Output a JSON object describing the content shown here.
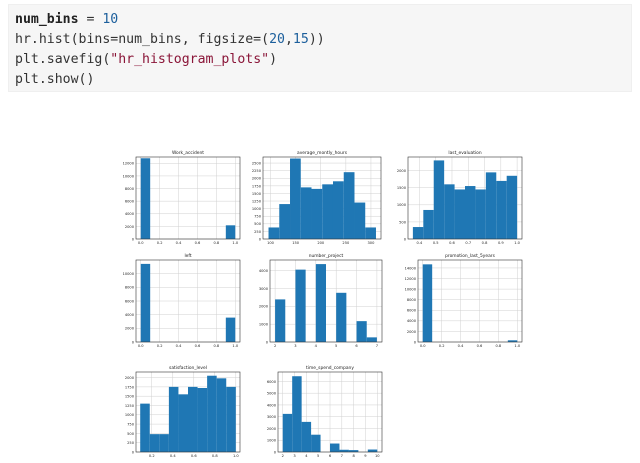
{
  "code": {
    "line1": {
      "var": "num_bins",
      "op": " = ",
      "num": "10"
    },
    "line2": {
      "pre": "hr.hist(bins=num_bins, figsize=(",
      "n1": "20",
      "comma": ",",
      "n2": "15",
      "post": "))"
    },
    "line3": {
      "pre": "plt.savefig(",
      "str": "\"hr_histogram_plots\"",
      "post": ")"
    },
    "line4": {
      "text": "plt.show()"
    }
  },
  "chart_data": [
    {
      "type": "bar",
      "title": "Work_accident",
      "x_ticks": [
        "0.0",
        "0.2",
        "0.4",
        "0.6",
        "0.8",
        "1.0"
      ],
      "xlim": [
        -0.05,
        1.05
      ],
      "y_ticks": [
        "0",
        "2000",
        "4000",
        "6000",
        "8000",
        "10000",
        "12000"
      ],
      "ylim": [
        0,
        13000
      ],
      "bins": [
        {
          "x0": 0.0,
          "x1": 0.1,
          "value": 12800
        },
        {
          "x0": 0.9,
          "x1": 1.0,
          "value": 2170
        }
      ]
    },
    {
      "type": "bar",
      "title": "average_montly_hours",
      "x_ticks": [
        "100",
        "150",
        "200",
        "250",
        "300"
      ],
      "xlim": [
        85,
        320
      ],
      "y_ticks": [
        "0",
        "250",
        "500",
        "750",
        "1000",
        "1250",
        "1500",
        "1750",
        "2000",
        "2250",
        "2500"
      ],
      "ylim": [
        0,
        2700
      ],
      "bins": [
        {
          "x0": 96,
          "x1": 117.4,
          "value": 380
        },
        {
          "x0": 117.4,
          "x1": 138.8,
          "value": 1150
        },
        {
          "x0": 138.8,
          "x1": 160.2,
          "value": 2650
        },
        {
          "x0": 160.2,
          "x1": 181.6,
          "value": 1700
        },
        {
          "x0": 181.6,
          "x1": 203.0,
          "value": 1650
        },
        {
          "x0": 203.0,
          "x1": 224.4,
          "value": 1800
        },
        {
          "x0": 224.4,
          "x1": 245.8,
          "value": 1900
        },
        {
          "x0": 245.8,
          "x1": 267.2,
          "value": 2200
        },
        {
          "x0": 267.2,
          "x1": 288.6,
          "value": 1200
        },
        {
          "x0": 288.6,
          "x1": 310.0,
          "value": 380
        }
      ]
    },
    {
      "type": "bar",
      "title": "last_evaluation",
      "x_ticks": [
        "0.4",
        "0.5",
        "0.6",
        "0.7",
        "0.8",
        "0.9",
        "1.0"
      ],
      "xlim": [
        0.33,
        1.03
      ],
      "y_ticks": [
        "0",
        "500",
        "1000",
        "1500",
        "2000"
      ],
      "ylim": [
        0,
        2400
      ],
      "bins": [
        {
          "x0": 0.36,
          "x1": 0.424,
          "value": 350
        },
        {
          "x0": 0.424,
          "x1": 0.488,
          "value": 850
        },
        {
          "x0": 0.488,
          "x1": 0.552,
          "value": 2300
        },
        {
          "x0": 0.552,
          "x1": 0.616,
          "value": 1600
        },
        {
          "x0": 0.616,
          "x1": 0.68,
          "value": 1450
        },
        {
          "x0": 0.68,
          "x1": 0.744,
          "value": 1550
        },
        {
          "x0": 0.744,
          "x1": 0.808,
          "value": 1450
        },
        {
          "x0": 0.808,
          "x1": 0.872,
          "value": 1950
        },
        {
          "x0": 0.872,
          "x1": 0.936,
          "value": 1700
        },
        {
          "x0": 0.936,
          "x1": 1.0,
          "value": 1850
        }
      ]
    },
    {
      "type": "bar",
      "title": "left",
      "x_ticks": [
        "0.0",
        "0.2",
        "0.4",
        "0.6",
        "0.8",
        "1.0"
      ],
      "xlim": [
        -0.05,
        1.05
      ],
      "y_ticks": [
        "0",
        "2000",
        "4000",
        "6000",
        "8000",
        "10000"
      ],
      "ylim": [
        0,
        12000
      ],
      "bins": [
        {
          "x0": 0.0,
          "x1": 0.1,
          "value": 11430
        },
        {
          "x0": 0.9,
          "x1": 1.0,
          "value": 3570
        }
      ]
    },
    {
      "type": "bar",
      "title": "number_project",
      "x_ticks": [
        "2",
        "3",
        "4",
        "5",
        "6",
        "7"
      ],
      "xlim": [
        1.75,
        7.25
      ],
      "y_ticks": [
        "0",
        "1000",
        "2000",
        "3000",
        "4000"
      ],
      "ylim": [
        0,
        4600
      ],
      "bins": [
        {
          "x0": 2.0,
          "x1": 2.5,
          "value": 2390
        },
        {
          "x0": 3.0,
          "x1": 3.5,
          "value": 4060
        },
        {
          "x0": 4.0,
          "x1": 4.5,
          "value": 4370
        },
        {
          "x0": 5.0,
          "x1": 5.5,
          "value": 2760
        },
        {
          "x0": 6.0,
          "x1": 6.5,
          "value": 1170
        },
        {
          "x0": 6.5,
          "x1": 7.0,
          "value": 260
        }
      ]
    },
    {
      "type": "bar",
      "title": "promotion_last_5years",
      "x_ticks": [
        "0.0",
        "0.2",
        "0.4",
        "0.6",
        "0.8",
        "1.0"
      ],
      "xlim": [
        -0.05,
        1.05
      ],
      "y_ticks": [
        "0",
        "2000",
        "4000",
        "6000",
        "8000",
        "10000",
        "12000",
        "14000"
      ],
      "ylim": [
        0,
        15500
      ],
      "bins": [
        {
          "x0": 0.0,
          "x1": 0.1,
          "value": 14680
        },
        {
          "x0": 0.9,
          "x1": 1.0,
          "value": 320
        }
      ]
    },
    {
      "type": "bar",
      "title": "satisfaction_level",
      "x_ticks": [
        "0.2",
        "0.4",
        "0.6",
        "0.8",
        "1.0"
      ],
      "xlim": [
        0.05,
        1.04
      ],
      "y_ticks": [
        "0",
        "250",
        "500",
        "750",
        "1000",
        "1250",
        "1500",
        "1750",
        "2000"
      ],
      "ylim": [
        0,
        2150
      ],
      "bins": [
        {
          "x0": 0.09,
          "x1": 0.181,
          "value": 1300
        },
        {
          "x0": 0.181,
          "x1": 0.272,
          "value": 480
        },
        {
          "x0": 0.272,
          "x1": 0.363,
          "value": 480
        },
        {
          "x0": 0.363,
          "x1": 0.454,
          "value": 1750
        },
        {
          "x0": 0.454,
          "x1": 0.545,
          "value": 1550
        },
        {
          "x0": 0.545,
          "x1": 0.636,
          "value": 1750
        },
        {
          "x0": 0.636,
          "x1": 0.727,
          "value": 1720
        },
        {
          "x0": 0.727,
          "x1": 0.818,
          "value": 2050
        },
        {
          "x0": 0.818,
          "x1": 0.909,
          "value": 1980
        },
        {
          "x0": 0.909,
          "x1": 1.0,
          "value": 1750
        }
      ]
    },
    {
      "type": "bar",
      "title": "time_spend_company",
      "x_ticks": [
        "2",
        "3",
        "4",
        "5",
        "6",
        "7",
        "8",
        "9",
        "10"
      ],
      "xlim": [
        1.6,
        10.4
      ],
      "y_ticks": [
        "0",
        "1000",
        "2000",
        "3000",
        "4000",
        "5000",
        "6000"
      ],
      "ylim": [
        0,
        6800
      ],
      "bins": [
        {
          "x0": 2.0,
          "x1": 2.8,
          "value": 3240
        },
        {
          "x0": 2.8,
          "x1": 3.6,
          "value": 6440
        },
        {
          "x0": 3.6,
          "x1": 4.4,
          "value": 2560
        },
        {
          "x0": 4.4,
          "x1": 5.2,
          "value": 1470
        },
        {
          "x0": 5.2,
          "x1": 6.0,
          "value": 0
        },
        {
          "x0": 6.0,
          "x1": 6.8,
          "value": 720
        },
        {
          "x0": 6.8,
          "x1": 7.6,
          "value": 190
        },
        {
          "x0": 7.6,
          "x1": 8.4,
          "value": 160
        },
        {
          "x0": 8.4,
          "x1": 9.2,
          "value": 0
        },
        {
          "x0": 9.2,
          "x1": 10.0,
          "value": 210
        }
      ]
    }
  ],
  "colors": {
    "bar": "#1f77b4",
    "grid": "#d0d0d0",
    "axis": "#333333",
    "text": "#222222"
  }
}
